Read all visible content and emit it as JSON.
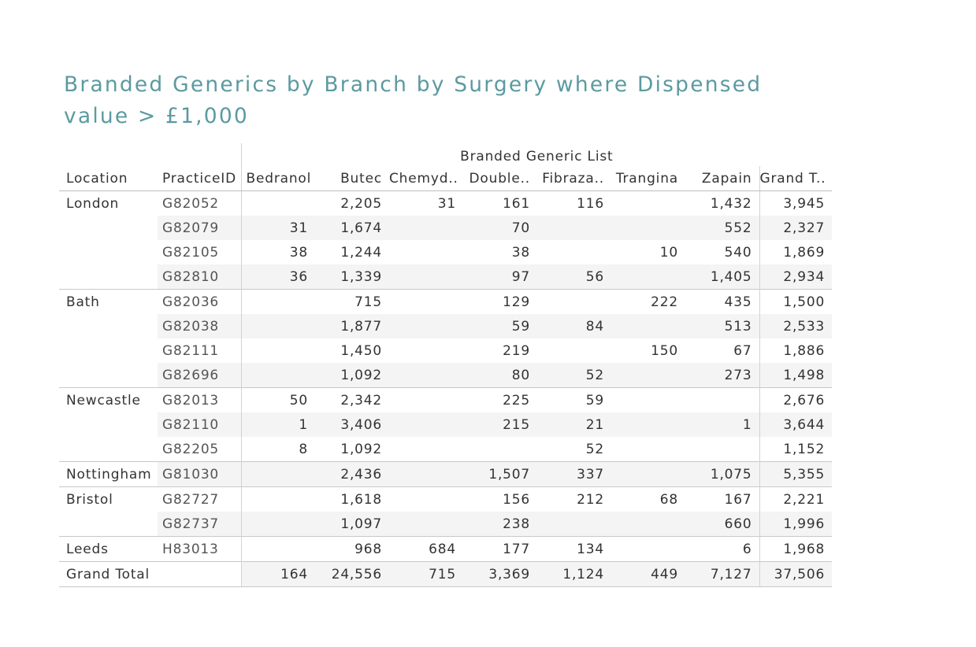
{
  "title": "Branded Generics by Branch by Surgery where Dispensed value > £1,000",
  "chart_data": {
    "type": "table",
    "group_header": "Branded Generic List",
    "row_headers": [
      "Location",
      "PracticeID"
    ],
    "columns": [
      "Bedranol",
      "Butec",
      "Chemyd..",
      "Double..",
      "Fibraza..",
      "Trangina",
      "Zapain",
      "Grand T.."
    ],
    "groups": [
      {
        "location": "London",
        "rows": [
          {
            "practice": "G82052",
            "values": [
              "",
              "2,205",
              "31",
              "161",
              "116",
              "",
              "1,432",
              "3,945"
            ]
          },
          {
            "practice": "G82079",
            "values": [
              "31",
              "1,674",
              "",
              "70",
              "",
              "",
              "552",
              "2,327"
            ]
          },
          {
            "practice": "G82105",
            "values": [
              "38",
              "1,244",
              "",
              "38",
              "",
              "10",
              "540",
              "1,869"
            ]
          },
          {
            "practice": "G82810",
            "values": [
              "36",
              "1,339",
              "",
              "97",
              "56",
              "",
              "1,405",
              "2,934"
            ]
          }
        ]
      },
      {
        "location": "Bath",
        "rows": [
          {
            "practice": "G82036",
            "values": [
              "",
              "715",
              "",
              "129",
              "",
              "222",
              "435",
              "1,500"
            ]
          },
          {
            "practice": "G82038",
            "values": [
              "",
              "1,877",
              "",
              "59",
              "84",
              "",
              "513",
              "2,533"
            ]
          },
          {
            "practice": "G82111",
            "values": [
              "",
              "1,450",
              "",
              "219",
              "",
              "150",
              "67",
              "1,886"
            ]
          },
          {
            "practice": "G82696",
            "values": [
              "",
              "1,092",
              "",
              "80",
              "52",
              "",
              "273",
              "1,498"
            ]
          }
        ]
      },
      {
        "location": "Newcastle",
        "rows": [
          {
            "practice": "G82013",
            "values": [
              "50",
              "2,342",
              "",
              "225",
              "59",
              "",
              "",
              "2,676"
            ]
          },
          {
            "practice": "G82110",
            "values": [
              "1",
              "3,406",
              "",
              "215",
              "21",
              "",
              "1",
              "3,644"
            ]
          },
          {
            "practice": "G82205",
            "values": [
              "8",
              "1,092",
              "",
              "",
              "52",
              "",
              "",
              "1,152"
            ]
          }
        ]
      },
      {
        "location": "Nottingham",
        "rows": [
          {
            "practice": "G81030",
            "values": [
              "",
              "2,436",
              "",
              "1,507",
              "337",
              "",
              "1,075",
              "5,355"
            ]
          }
        ]
      },
      {
        "location": "Bristol",
        "rows": [
          {
            "practice": "G82727",
            "values": [
              "",
              "1,618",
              "",
              "156",
              "212",
              "68",
              "167",
              "2,221"
            ]
          },
          {
            "practice": "G82737",
            "values": [
              "",
              "1,097",
              "",
              "238",
              "",
              "",
              "660",
              "1,996"
            ]
          }
        ]
      },
      {
        "location": "Leeds",
        "rows": [
          {
            "practice": "H83013",
            "values": [
              "",
              "968",
              "684",
              "177",
              "134",
              "",
              "6",
              "1,968"
            ]
          }
        ]
      }
    ],
    "grand_total": {
      "label": "Grand Total",
      "values": [
        "164",
        "24,556",
        "715",
        "3,369",
        "1,124",
        "449",
        "7,127",
        "37,506"
      ]
    }
  }
}
